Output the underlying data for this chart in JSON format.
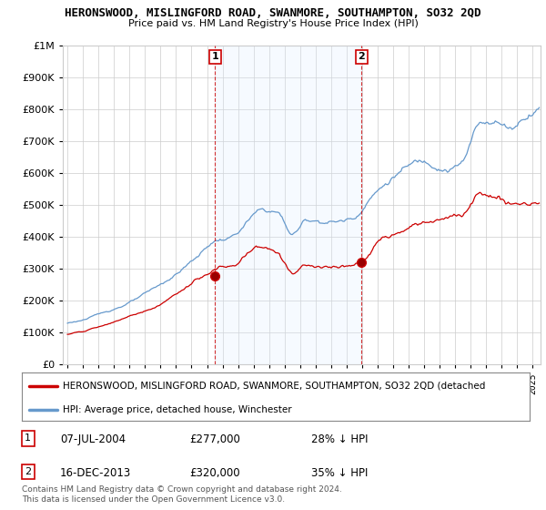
{
  "title": "HERONSWOOD, MISLINGFORD ROAD, SWANMORE, SOUTHAMPTON, SO32 2QD",
  "subtitle": "Price paid vs. HM Land Registry's House Price Index (HPI)",
  "legend_line1": "HERONSWOOD, MISLINGFORD ROAD, SWANMORE, SOUTHAMPTON, SO32 2QD (detached",
  "legend_line2": "HPI: Average price, detached house, Winchester",
  "footnote": "Contains HM Land Registry data © Crown copyright and database right 2024.\nThis data is licensed under the Open Government Licence v3.0.",
  "annotation1_label": "1",
  "annotation1_date": "07-JUL-2004",
  "annotation1_price": "£277,000",
  "annotation1_hpi": "28% ↓ HPI",
  "annotation1_year": 2004.52,
  "annotation1_value": 277000,
  "annotation2_label": "2",
  "annotation2_date": "16-DEC-2013",
  "annotation2_price": "£320,000",
  "annotation2_hpi": "35% ↓ HPI",
  "annotation2_year": 2013.96,
  "annotation2_value": 320000,
  "red_color": "#cc0000",
  "blue_color": "#6699cc",
  "shade_color": "#ddeeff",
  "background_color": "#ffffff",
  "grid_color": "#cccccc",
  "ylim": [
    0,
    1000000
  ],
  "xlim_start": 1994.7,
  "xlim_end": 2025.5
}
